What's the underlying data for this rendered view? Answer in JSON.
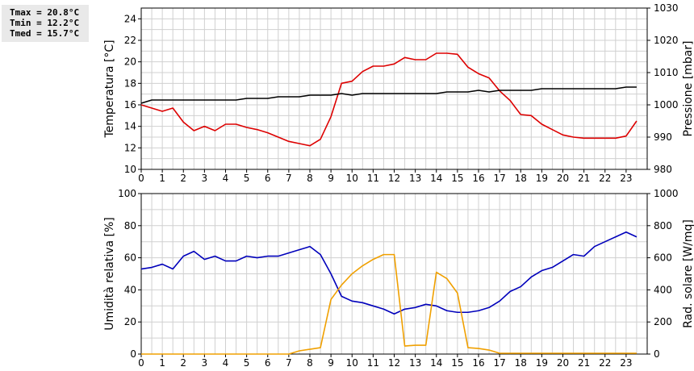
{
  "stats": {
    "tmax": "Tmax = 20.8°C",
    "tmin": "Tmin = 12.2°C",
    "tmed": "Tmed = 15.7°C"
  },
  "colors": {
    "temperature": "#dd0000",
    "pressure": "#000000",
    "humidity": "#0000bb",
    "radiation": "#f0a000",
    "grid": "#d0d0d0"
  },
  "chart_data": [
    {
      "type": "line",
      "x_ticks": [
        "0",
        "1",
        "2",
        "3",
        "4",
        "5",
        "6",
        "7",
        "8",
        "9",
        "10",
        "11",
        "12",
        "13",
        "14",
        "15",
        "16",
        "17",
        "18",
        "19",
        "20",
        "21",
        "22",
        "23"
      ],
      "xlim": [
        0,
        24
      ],
      "ylabel_left": "Temperatura [°C]",
      "ylabel_right": "Pressione [mbar]",
      "ylim_left": [
        10,
        25
      ],
      "ylim_right": [
        980,
        1030
      ],
      "yticks_left": [
        "10",
        "12",
        "14",
        "16",
        "18",
        "20",
        "22",
        "24"
      ],
      "yticks_right": [
        "980",
        "990",
        "1000",
        "1010",
        "1020",
        "1030"
      ],
      "grid": true,
      "legend_position": "left",
      "series": [
        {
          "name": "Temperatura",
          "axis": "left",
          "x": [
            0,
            0.5,
            1,
            1.5,
            2,
            2.5,
            3,
            3.5,
            4,
            4.5,
            5,
            5.5,
            6,
            6.5,
            7,
            7.5,
            8,
            8.5,
            9,
            9.5,
            10,
            10.5,
            11,
            11.5,
            12,
            12.5,
            13,
            13.5,
            14,
            14.5,
            15,
            15.5,
            16,
            16.5,
            17,
            17.5,
            18,
            18.5,
            19,
            19.5,
            20,
            20.5,
            21,
            21.5,
            22,
            22.5,
            23,
            23.5
          ],
          "values": [
            16.0,
            15.7,
            15.4,
            15.7,
            14.4,
            13.6,
            14.0,
            13.6,
            14.2,
            14.2,
            13.9,
            13.7,
            13.4,
            13.0,
            12.6,
            12.4,
            12.2,
            12.8,
            14.9,
            18.0,
            18.2,
            19.1,
            19.6,
            19.6,
            19.8,
            20.4,
            20.2,
            20.2,
            20.8,
            20.8,
            20.7,
            19.5,
            18.9,
            18.5,
            17.3,
            16.4,
            15.1,
            15.0,
            14.2,
            13.7,
            13.2,
            13.0,
            12.9,
            12.9,
            12.9,
            12.9,
            13.1,
            14.5
          ]
        },
        {
          "name": "Pressione",
          "axis": "right",
          "x": [
            0,
            0.5,
            1,
            1.5,
            2,
            2.5,
            3,
            3.5,
            4,
            4.5,
            5,
            5.5,
            6,
            6.5,
            7,
            7.5,
            8,
            8.5,
            9,
            9.5,
            10,
            10.5,
            11,
            11.5,
            12,
            12.5,
            13,
            13.5,
            14,
            14.5,
            15,
            15.5,
            16,
            16.5,
            17,
            17.5,
            18,
            18.5,
            19,
            19.5,
            20,
            20.5,
            21,
            21.5,
            22,
            22.5,
            23,
            23.5
          ],
          "values": [
            1000.5,
            1001.5,
            1001.5,
            1001.5,
            1001.5,
            1001.5,
            1001.5,
            1001.5,
            1001.5,
            1001.5,
            1002,
            1002,
            1002,
            1002.5,
            1002.5,
            1002.5,
            1003,
            1003,
            1003,
            1003.5,
            1003,
            1003.5,
            1003.5,
            1003.5,
            1003.5,
            1003.5,
            1003.5,
            1003.5,
            1003.5,
            1004,
            1004,
            1004,
            1004.5,
            1004,
            1004.5,
            1004.5,
            1004.5,
            1004.5,
            1005,
            1005,
            1005,
            1005,
            1005,
            1005,
            1005,
            1005,
            1005.5,
            1005.5
          ]
        }
      ]
    },
    {
      "type": "line",
      "x_ticks": [
        "0",
        "1",
        "2",
        "3",
        "4",
        "5",
        "6",
        "7",
        "8",
        "9",
        "10",
        "11",
        "12",
        "13",
        "14",
        "15",
        "16",
        "17",
        "18",
        "19",
        "20",
        "21",
        "22",
        "23"
      ],
      "xlim": [
        0,
        24
      ],
      "ylabel_left": "Umidità relativa [%]",
      "ylabel_right": "Rad. solare [W/mq]",
      "ylim_left": [
        0,
        100
      ],
      "ylim_right": [
        0,
        1000
      ],
      "yticks_left": [
        "0",
        "20",
        "40",
        "60",
        "80",
        "100"
      ],
      "yticks_right": [
        "0",
        "200",
        "400",
        "600",
        "800",
        "1000"
      ],
      "grid": true,
      "legend_position": "left",
      "series": [
        {
          "name": "Umidità",
          "axis": "left",
          "x": [
            0,
            0.5,
            1,
            1.5,
            2,
            2.5,
            3,
            3.5,
            4,
            4.5,
            5,
            5.5,
            6,
            6.5,
            7,
            7.5,
            8,
            8.5,
            9,
            9.5,
            10,
            10.5,
            11,
            11.5,
            12,
            12.5,
            13,
            13.5,
            14,
            14.5,
            15,
            15.5,
            16,
            16.5,
            17,
            17.5,
            18,
            18.5,
            19,
            19.5,
            20,
            20.5,
            21,
            21.5,
            22,
            22.5,
            23,
            23.5
          ],
          "values": [
            53,
            54,
            56,
            53,
            61,
            64,
            59,
            61,
            58,
            58,
            61,
            60,
            61,
            61,
            63,
            65,
            67,
            62,
            50,
            36,
            33,
            32,
            30,
            28,
            25,
            28,
            29,
            31,
            30,
            27,
            26,
            26,
            27,
            29,
            33,
            39,
            42,
            48,
            52,
            54,
            58,
            62,
            61,
            67,
            70,
            73,
            76,
            73
          ]
        },
        {
          "name": "Rad. sol.",
          "axis": "right",
          "x": [
            0,
            0.5,
            1,
            1.5,
            2,
            2.5,
            3,
            3.5,
            4,
            4.5,
            5,
            5.5,
            6,
            6.5,
            7,
            7.5,
            8,
            8.5,
            9,
            9.5,
            10,
            10.5,
            11,
            11.5,
            12,
            12.5,
            13,
            13.5,
            14,
            14.5,
            15,
            15.5,
            16,
            16.5,
            17,
            17.5,
            18,
            18.5,
            19,
            19.5,
            20,
            20.5,
            21,
            21.5,
            22,
            22.5,
            23,
            23.5
          ],
          "values": [
            0,
            0,
            0,
            0,
            0,
            0,
            0,
            0,
            0,
            0,
            0,
            0,
            0,
            0,
            0,
            20,
            30,
            40,
            340,
            430,
            500,
            550,
            590,
            620,
            620,
            50,
            55,
            55,
            510,
            470,
            380,
            40,
            35,
            25,
            5,
            5,
            5,
            5,
            5,
            5,
            5,
            5,
            5,
            5,
            5,
            5,
            5,
            5
          ]
        }
      ]
    }
  ]
}
